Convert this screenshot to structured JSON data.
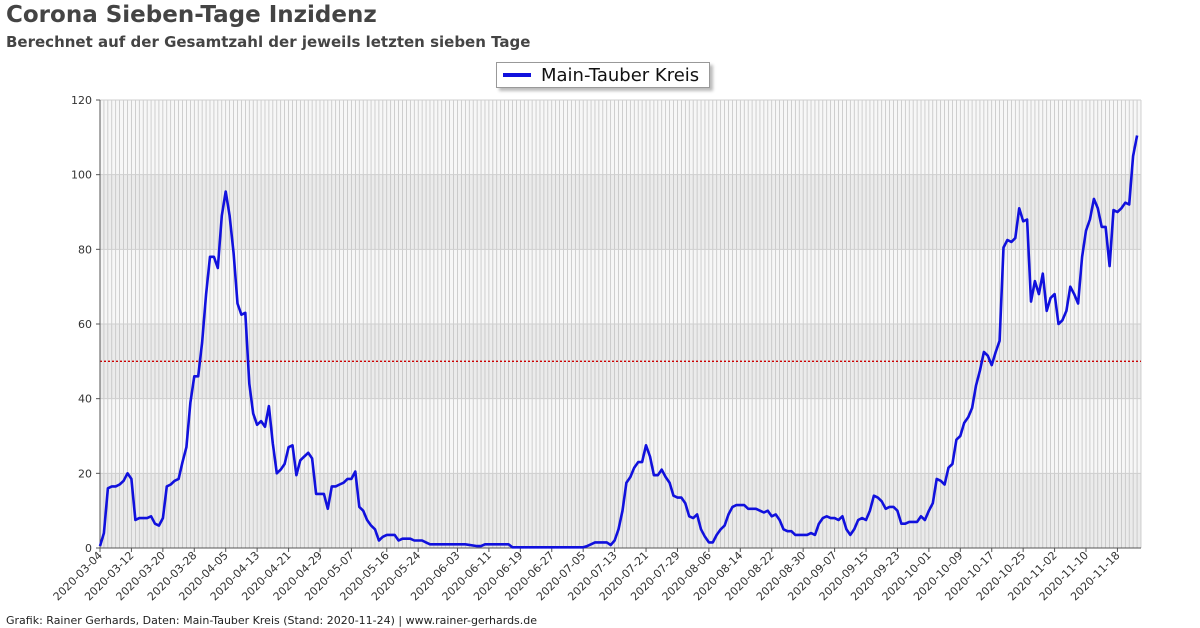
{
  "header": {
    "title": "Corona Sieben-Tage Inzidenz",
    "subtitle": "Berechnet auf der Gesamtzahl der jeweils letzten sieben Tage"
  },
  "footer": {
    "credit": "Grafik: Rainer Gerhards, Daten: Main-Tauber Kreis (Stand: 2020-11-24) | www.rainer-gerhards.de"
  },
  "colors": {
    "series": "#1111dd",
    "threshold": "#cc0000",
    "band_shaded": "#ebebeb",
    "band_plain": "#f7f7f7"
  },
  "chart_data": {
    "type": "line",
    "title": "Corona Sieben-Tage Inzidenz",
    "subtitle": "Berechnet auf der Gesamtzahl der jeweils letzten sieben Tage",
    "xlabel": "",
    "ylabel": "",
    "x_start": "2020-03-04",
    "x_end": "2020-11-24",
    "ylim": [
      0,
      120
    ],
    "yticks": [
      0,
      20,
      40,
      60,
      80,
      100,
      120
    ],
    "xticks": [
      "2020-03-04",
      "2020-03-12",
      "2020-03-20",
      "2020-03-28",
      "2020-04-05",
      "2020-04-13",
      "2020-04-21",
      "2020-04-29",
      "2020-05-07",
      "2020-05-16",
      "2020-05-24",
      "2020-06-03",
      "2020-06-11",
      "2020-06-19",
      "2020-06-27",
      "2020-07-05",
      "2020-07-13",
      "2020-07-21",
      "2020-07-29",
      "2020-08-06",
      "2020-08-14",
      "2020-08-22",
      "2020-08-30",
      "2020-09-07",
      "2020-09-15",
      "2020-09-23",
      "2020-10-01",
      "2020-10-09",
      "2020-10-17",
      "2020-10-25",
      "2020-11-02",
      "2020-11-10",
      "2020-11-18"
    ],
    "grid": true,
    "threshold": 50,
    "legend_position": "top-center",
    "series": [
      {
        "name": "Main-Tauber Kreis",
        "points": [
          [
            "2020-03-04",
            0.5
          ],
          [
            "2020-03-05",
            4
          ],
          [
            "2020-03-06",
            16
          ],
          [
            "2020-03-07",
            16.5
          ],
          [
            "2020-03-08",
            16.5
          ],
          [
            "2020-03-09",
            17
          ],
          [
            "2020-03-10",
            18
          ],
          [
            "2020-03-11",
            20
          ],
          [
            "2020-03-12",
            18.5
          ],
          [
            "2020-03-13",
            7.5
          ],
          [
            "2020-03-14",
            8
          ],
          [
            "2020-03-15",
            8
          ],
          [
            "2020-03-16",
            8
          ],
          [
            "2020-03-17",
            8.5
          ],
          [
            "2020-03-18",
            6.5
          ],
          [
            "2020-03-19",
            6
          ],
          [
            "2020-03-20",
            8
          ],
          [
            "2020-03-21",
            16.5
          ],
          [
            "2020-03-22",
            17
          ],
          [
            "2020-03-23",
            18
          ],
          [
            "2020-03-24",
            18.5
          ],
          [
            "2020-03-25",
            23
          ],
          [
            "2020-03-26",
            27
          ],
          [
            "2020-03-27",
            39
          ],
          [
            "2020-03-28",
            46
          ],
          [
            "2020-03-29",
            46
          ],
          [
            "2020-03-30",
            55
          ],
          [
            "2020-03-31",
            68
          ],
          [
            "2020-04-01",
            78
          ],
          [
            "2020-04-02",
            78
          ],
          [
            "2020-04-03",
            75
          ],
          [
            "2020-04-04",
            89
          ],
          [
            "2020-04-05",
            95.5
          ],
          [
            "2020-04-06",
            89
          ],
          [
            "2020-04-07",
            79
          ],
          [
            "2020-04-08",
            65.5
          ],
          [
            "2020-04-09",
            62.5
          ],
          [
            "2020-04-10",
            63
          ],
          [
            "2020-04-11",
            44
          ],
          [
            "2020-04-12",
            36
          ],
          [
            "2020-04-13",
            33
          ],
          [
            "2020-04-14",
            34
          ],
          [
            "2020-04-15",
            32.5
          ],
          [
            "2020-04-16",
            38
          ],
          [
            "2020-04-17",
            28
          ],
          [
            "2020-04-18",
            20
          ],
          [
            "2020-04-19",
            21
          ],
          [
            "2020-04-20",
            22.5
          ],
          [
            "2020-04-21",
            27
          ],
          [
            "2020-04-22",
            27.5
          ],
          [
            "2020-04-23",
            19.5
          ],
          [
            "2020-04-24",
            23.5
          ],
          [
            "2020-04-25",
            24.5
          ],
          [
            "2020-04-26",
            25.5
          ],
          [
            "2020-04-27",
            24
          ],
          [
            "2020-04-28",
            14.5
          ],
          [
            "2020-04-29",
            14.5
          ],
          [
            "2020-04-30",
            14.5
          ],
          [
            "2020-05-01",
            10.5
          ],
          [
            "2020-05-02",
            16.5
          ],
          [
            "2020-05-03",
            16.5
          ],
          [
            "2020-05-04",
            17
          ],
          [
            "2020-05-05",
            17.5
          ],
          [
            "2020-05-06",
            18.5
          ],
          [
            "2020-05-07",
            18.5
          ],
          [
            "2020-05-08",
            20.5
          ],
          [
            "2020-05-09",
            11
          ],
          [
            "2020-05-10",
            10
          ],
          [
            "2020-05-11",
            7.5
          ],
          [
            "2020-05-12",
            6
          ],
          [
            "2020-05-13",
            5
          ],
          [
            "2020-05-14",
            2
          ],
          [
            "2020-05-15",
            3
          ],
          [
            "2020-05-16",
            3.5
          ],
          [
            "2020-05-17",
            3.5
          ],
          [
            "2020-05-18",
            3.5
          ],
          [
            "2020-05-19",
            2
          ],
          [
            "2020-05-20",
            2.5
          ],
          [
            "2020-05-21",
            2.5
          ],
          [
            "2020-05-22",
            2.5
          ],
          [
            "2020-05-23",
            2
          ],
          [
            "2020-05-24",
            2
          ],
          [
            "2020-05-25",
            2
          ],
          [
            "2020-05-26",
            1.5
          ],
          [
            "2020-05-27",
            1
          ],
          [
            "2020-06-05",
            1
          ],
          [
            "2020-06-08",
            0.5
          ],
          [
            "2020-06-09",
            0.5
          ],
          [
            "2020-06-10",
            1
          ],
          [
            "2020-06-11",
            1
          ],
          [
            "2020-06-16",
            1
          ],
          [
            "2020-06-17",
            0.2
          ],
          [
            "2020-07-05",
            0.2
          ],
          [
            "2020-07-06",
            0.5
          ],
          [
            "2020-07-07",
            1
          ],
          [
            "2020-07-08",
            1.5
          ],
          [
            "2020-07-11",
            1.5
          ],
          [
            "2020-07-12",
            0.8
          ],
          [
            "2020-07-13",
            2
          ],
          [
            "2020-07-14",
            5
          ],
          [
            "2020-07-15",
            10
          ],
          [
            "2020-07-16",
            17.5
          ],
          [
            "2020-07-17",
            19
          ],
          [
            "2020-07-18",
            21.5
          ],
          [
            "2020-07-19",
            23
          ],
          [
            "2020-07-20",
            23
          ],
          [
            "2020-07-21",
            27.5
          ],
          [
            "2020-07-22",
            24.5
          ],
          [
            "2020-07-23",
            19.5
          ],
          [
            "2020-07-24",
            19.5
          ],
          [
            "2020-07-25",
            21
          ],
          [
            "2020-07-26",
            19
          ],
          [
            "2020-07-27",
            17.5
          ],
          [
            "2020-07-28",
            14
          ],
          [
            "2020-07-29",
            13.5
          ],
          [
            "2020-07-30",
            13.5
          ],
          [
            "2020-07-31",
            12
          ],
          [
            "2020-08-01",
            8.5
          ],
          [
            "2020-08-02",
            8
          ],
          [
            "2020-08-03",
            9
          ],
          [
            "2020-08-04",
            5
          ],
          [
            "2020-08-05",
            3
          ],
          [
            "2020-08-06",
            1.5
          ],
          [
            "2020-08-07",
            1.5
          ],
          [
            "2020-08-08",
            3.5
          ],
          [
            "2020-08-09",
            5
          ],
          [
            "2020-08-10",
            6
          ],
          [
            "2020-08-11",
            9
          ],
          [
            "2020-08-12",
            11
          ],
          [
            "2020-08-13",
            11.5
          ],
          [
            "2020-08-14",
            11.5
          ],
          [
            "2020-08-15",
            11.5
          ],
          [
            "2020-08-16",
            10.5
          ],
          [
            "2020-08-17",
            10.5
          ],
          [
            "2020-08-18",
            10.5
          ],
          [
            "2020-08-19",
            10
          ],
          [
            "2020-08-20",
            9.5
          ],
          [
            "2020-08-21",
            10
          ],
          [
            "2020-08-22",
            8.5
          ],
          [
            "2020-08-23",
            9
          ],
          [
            "2020-08-24",
            7.5
          ],
          [
            "2020-08-25",
            5
          ],
          [
            "2020-08-26",
            4.5
          ],
          [
            "2020-08-27",
            4.5
          ],
          [
            "2020-08-28",
            3.5
          ],
          [
            "2020-08-29",
            3.5
          ],
          [
            "2020-08-30",
            3.5
          ],
          [
            "2020-08-31",
            3.5
          ],
          [
            "2020-09-01",
            4
          ],
          [
            "2020-09-02",
            3.5
          ],
          [
            "2020-09-03",
            6.5
          ],
          [
            "2020-09-04",
            8
          ],
          [
            "2020-09-05",
            8.5
          ],
          [
            "2020-09-06",
            8
          ],
          [
            "2020-09-07",
            8
          ],
          [
            "2020-09-08",
            7.5
          ],
          [
            "2020-09-09",
            8.5
          ],
          [
            "2020-09-10",
            5
          ],
          [
            "2020-09-11",
            3.5
          ],
          [
            "2020-09-12",
            5
          ],
          [
            "2020-09-13",
            7.5
          ],
          [
            "2020-09-14",
            8
          ],
          [
            "2020-09-15",
            7.5
          ],
          [
            "2020-09-16",
            10
          ],
          [
            "2020-09-17",
            14
          ],
          [
            "2020-09-18",
            13.5
          ],
          [
            "2020-09-19",
            12.5
          ],
          [
            "2020-09-20",
            10.5
          ],
          [
            "2020-09-21",
            11
          ],
          [
            "2020-09-22",
            11
          ],
          [
            "2020-09-23",
            10
          ],
          [
            "2020-09-24",
            6.5
          ],
          [
            "2020-09-25",
            6.5
          ],
          [
            "2020-09-26",
            7
          ],
          [
            "2020-09-27",
            7
          ],
          [
            "2020-09-28",
            7
          ],
          [
            "2020-09-29",
            8.5
          ],
          [
            "2020-09-30",
            7.5
          ],
          [
            "2020-10-01",
            10
          ],
          [
            "2020-10-02",
            12
          ],
          [
            "2020-10-03",
            18.5
          ],
          [
            "2020-10-04",
            18
          ],
          [
            "2020-10-05",
            17
          ],
          [
            "2020-10-06",
            21.5
          ],
          [
            "2020-10-07",
            22.5
          ],
          [
            "2020-10-08",
            29
          ],
          [
            "2020-10-09",
            30
          ],
          [
            "2020-10-10",
            33.5
          ],
          [
            "2020-10-11",
            35
          ],
          [
            "2020-10-12",
            37.5
          ],
          [
            "2020-10-13",
            43.5
          ],
          [
            "2020-10-14",
            47.5
          ],
          [
            "2020-10-15",
            52.5
          ],
          [
            "2020-10-16",
            51.5
          ],
          [
            "2020-10-17",
            49
          ],
          [
            "2020-10-18",
            52.5
          ],
          [
            "2020-10-19",
            55.5
          ],
          [
            "2020-10-20",
            80.5
          ],
          [
            "2020-10-21",
            82.5
          ],
          [
            "2020-10-22",
            82
          ],
          [
            "2020-10-23",
            83
          ],
          [
            "2020-10-24",
            91
          ],
          [
            "2020-10-25",
            87.5
          ],
          [
            "2020-10-26",
            88
          ],
          [
            "2020-10-27",
            66
          ],
          [
            "2020-10-28",
            71.5
          ],
          [
            "2020-10-29",
            68
          ],
          [
            "2020-10-30",
            73.5
          ],
          [
            "2020-10-31",
            63.5
          ],
          [
            "2020-11-01",
            67
          ],
          [
            "2020-11-02",
            68
          ],
          [
            "2020-11-03",
            60
          ],
          [
            "2020-11-04",
            61
          ],
          [
            "2020-11-05",
            63.5
          ],
          [
            "2020-11-06",
            70
          ],
          [
            "2020-11-07",
            68
          ],
          [
            "2020-11-08",
            65.5
          ],
          [
            "2020-11-09",
            78
          ],
          [
            "2020-11-10",
            85
          ],
          [
            "2020-11-11",
            88
          ],
          [
            "2020-11-12",
            93.5
          ],
          [
            "2020-11-13",
            91
          ],
          [
            "2020-11-14",
            86
          ],
          [
            "2020-11-15",
            86
          ],
          [
            "2020-11-16",
            75.5
          ],
          [
            "2020-11-17",
            90.5
          ],
          [
            "2020-11-18",
            90
          ],
          [
            "2020-11-19",
            91
          ],
          [
            "2020-11-20",
            92.5
          ],
          [
            "2020-11-21",
            92
          ],
          [
            "2020-11-22",
            105
          ],
          [
            "2020-11-23",
            110.5
          ]
        ]
      }
    ]
  }
}
